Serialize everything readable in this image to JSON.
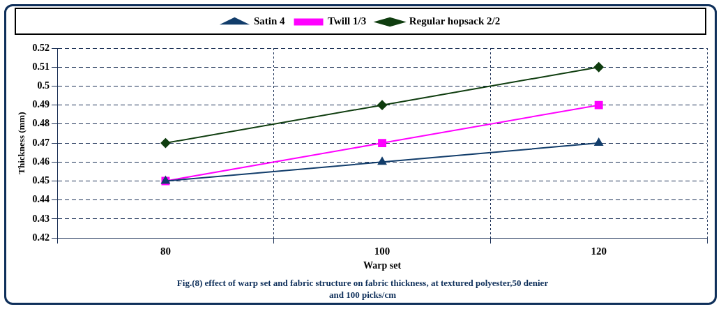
{
  "chart_data": {
    "type": "line",
    "categories": [
      "80",
      "100",
      "120"
    ],
    "xlabel": "Warp set",
    "ylabel": "Thickness (mm)",
    "ylim": [
      0.42,
      0.52
    ],
    "yticks": [
      0.42,
      0.43,
      0.44,
      0.45,
      0.46,
      0.47,
      0.48,
      0.49,
      0.5,
      0.51,
      0.52
    ],
    "grid": true,
    "legend": "top",
    "line_style": "solid",
    "series": [
      {
        "name": "Regular hopsack 2/2",
        "color": "#0f3d0f",
        "marker": "diamond",
        "values": [
          0.47,
          0.49,
          0.51
        ]
      },
      {
        "name": "Twill 1/3",
        "color": "#ff00ff",
        "marker": "square",
        "values": [
          0.45,
          0.47,
          0.49
        ]
      },
      {
        "name": "Satin 4",
        "color": "#123d6b",
        "marker": "triangle",
        "values": [
          0.45,
          0.46,
          0.47
        ]
      }
    ],
    "annotations": [
      "Fig.(8) effect of warp  set and  fabric structure on fabric thickness, at textured polyester,50 denier and 100 picks/cm"
    ]
  }
}
